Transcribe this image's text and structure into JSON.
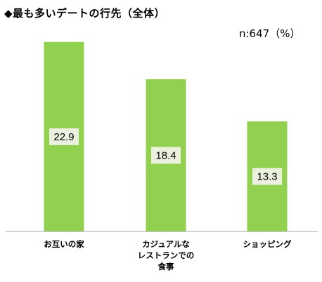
{
  "chart_title": "◆最も多いデートの行先（全体）",
  "sample_note": "n:647（%）",
  "chart_data": {
    "type": "bar",
    "title": "◆最も多いデートの行先（全体）",
    "categories": [
      [
        "お互いの家"
      ],
      [
        "カジュアルな",
        "レストランでの",
        "食事"
      ],
      [
        "ショッピング"
      ]
    ],
    "values": [
      22.9,
      18.4,
      13.3
    ],
    "data_labels": [
      "22.9",
      "18.4",
      "13.3"
    ],
    "ylim": [
      0,
      25
    ],
    "grid": false,
    "legend": "none",
    "colors": {
      "bar": "#92d050",
      "label_box": "#ebf1de",
      "axis": "#a6a6a6"
    }
  }
}
